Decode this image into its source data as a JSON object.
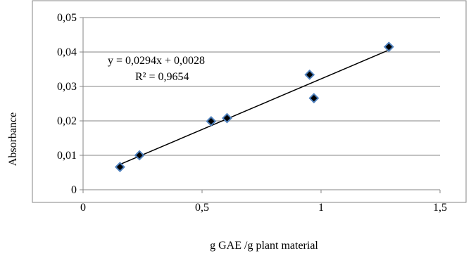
{
  "chart_data": {
    "type": "scatter",
    "xlabel": "g GAE /g plant material",
    "ylabel": "Absorbance",
    "xlim": [
      0,
      1.5
    ],
    "ylim": [
      0,
      0.05
    ],
    "x_ticks": [
      "0",
      "0,5",
      "1",
      "1,5"
    ],
    "y_ticks": [
      "0",
      "0,01",
      "0,02",
      "0,03",
      "0,04",
      "0,05"
    ],
    "x_tick_values": [
      0,
      0.5,
      1,
      1.5
    ],
    "y_tick_values": [
      0,
      0.01,
      0.02,
      0.03,
      0.04,
      0.05
    ],
    "grid": "horizontal",
    "legend": "none",
    "points": [
      {
        "x": 0.155,
        "y": 0.0066
      },
      {
        "x": 0.237,
        "y": 0.01
      },
      {
        "x": 0.538,
        "y": 0.0199
      },
      {
        "x": 0.605,
        "y": 0.0208
      },
      {
        "x": 0.952,
        "y": 0.0334
      },
      {
        "x": 0.97,
        "y": 0.0266
      },
      {
        "x": 1.285,
        "y": 0.0415
      }
    ],
    "trendline": {
      "type": "linear",
      "slope": 0.0294,
      "intercept": 0.0028,
      "x_range": [
        0.155,
        1.285
      ],
      "equation": "y = 0,0294x + 0,0028",
      "r_squared": "R² = 0,9654"
    },
    "colors": {
      "marker_fill": "#000000",
      "marker_edge": "#4f81bd",
      "line": "#000000",
      "grid": "#868686",
      "frame": "#868686"
    }
  }
}
